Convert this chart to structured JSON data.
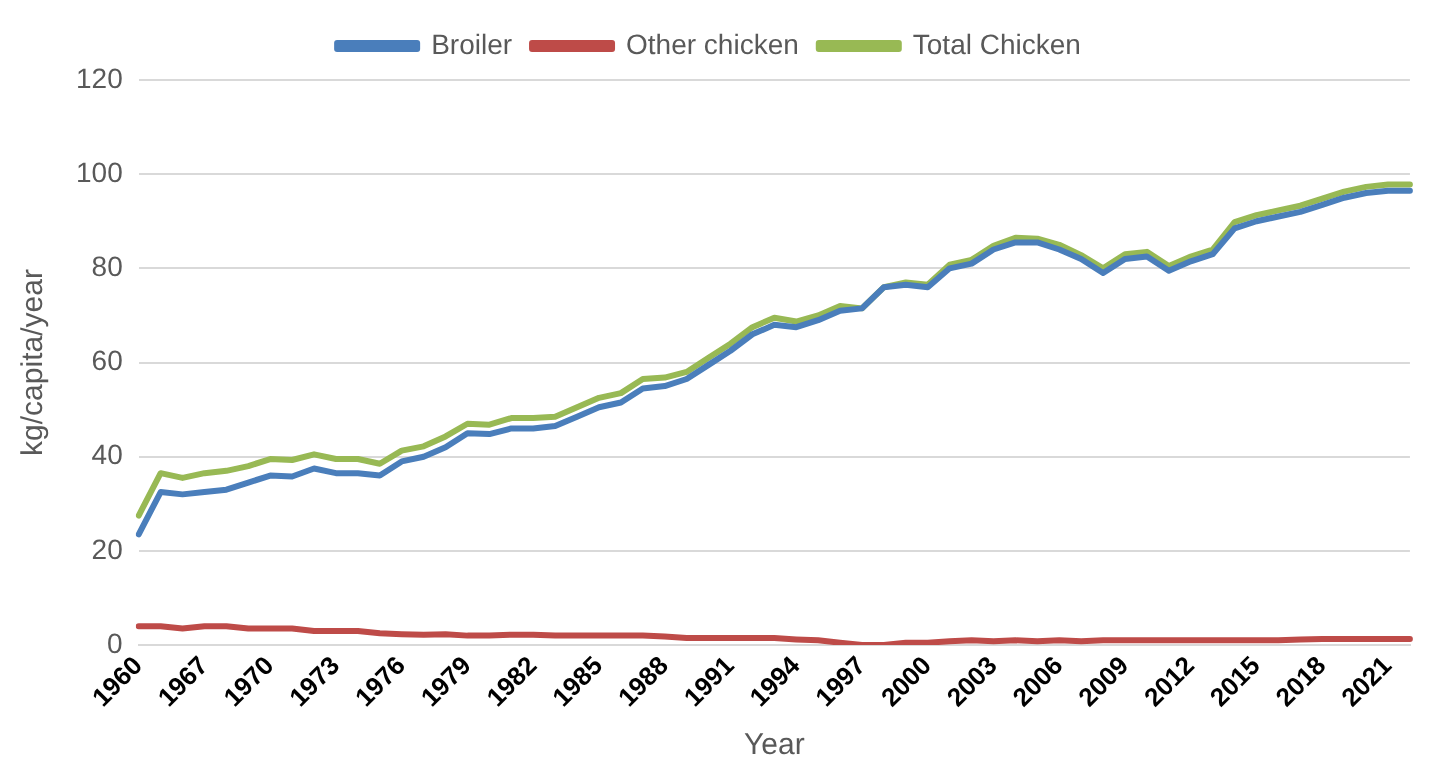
{
  "chart_data": {
    "type": "line",
    "xlabel": "Year",
    "ylabel": "kg/capita/year",
    "categories": [
      "1960",
      null,
      null,
      "1967",
      null,
      null,
      "1970",
      null,
      null,
      "1973",
      null,
      null,
      "1976",
      null,
      null,
      "1979",
      null,
      null,
      "1982",
      null,
      null,
      "1985",
      null,
      null,
      "1988",
      null,
      null,
      "1991",
      null,
      null,
      "1994",
      null,
      null,
      "1997",
      null,
      null,
      "2000",
      null,
      null,
      "2003",
      null,
      null,
      "2006",
      null,
      null,
      "2009",
      null,
      null,
      "2012",
      null,
      null,
      "2015",
      null,
      null,
      "2018",
      null,
      null,
      "2021",
      null
    ],
    "series": [
      {
        "name": "Broiler",
        "color": "#4a7ebb",
        "values": [
          23.5,
          32.5,
          32,
          32.5,
          33,
          34.5,
          36,
          35.8,
          37.5,
          36.5,
          36.5,
          36,
          39,
          40,
          42,
          45,
          44.8,
          46,
          46,
          46.5,
          48.5,
          50.5,
          51.5,
          54.5,
          55,
          56.5,
          59.5,
          62.5,
          66,
          68,
          67.5,
          69,
          71,
          71.5,
          76,
          76.5,
          76,
          80,
          81,
          84,
          85.5,
          85.5,
          84,
          82,
          79,
          82,
          82.5,
          79.5,
          81.5,
          83,
          88.5,
          90,
          91,
          92,
          93.5,
          95,
          96,
          96.5,
          96.5
        ]
      },
      {
        "name": "Other chicken",
        "color": "#be4b48",
        "values": [
          4,
          4,
          3.5,
          4,
          4,
          3.5,
          3.5,
          3.5,
          3,
          3,
          3,
          2.5,
          2.3,
          2.2,
          2.3,
          2,
          2,
          2.2,
          2.2,
          2,
          2,
          2,
          2,
          2,
          1.8,
          1.5,
          1.5,
          1.5,
          1.5,
          1.5,
          1.2,
          1,
          0.5,
          0,
          0,
          0.5,
          0.5,
          0.8,
          1,
          0.8,
          1,
          0.8,
          1,
          0.8,
          1,
          1,
          1,
          1,
          1,
          1,
          1,
          1,
          1,
          1.2,
          1.3,
          1.3,
          1.3,
          1.3,
          1.3
        ]
      },
      {
        "name": "Total Chicken",
        "color": "#98b954",
        "values": [
          27.5,
          36.5,
          35.5,
          36.5,
          37,
          38,
          39.5,
          39.3,
          40.5,
          39.5,
          39.5,
          38.5,
          41.3,
          42.2,
          44.3,
          47,
          46.8,
          48.2,
          48.2,
          48.5,
          50.5,
          52.5,
          53.5,
          56.5,
          56.8,
          58,
          61,
          64,
          67.5,
          69.5,
          68.7,
          70,
          72,
          71.5,
          76,
          77,
          76.5,
          80.8,
          81.8,
          84.8,
          86.5,
          86.3,
          85,
          82.8,
          80,
          83,
          83.5,
          80.5,
          82.5,
          84,
          89.8,
          91.3,
          92.3,
          93.3,
          94.8,
          96.3,
          97.3,
          97.8,
          97.8
        ]
      }
    ],
    "ylim": [
      0,
      120
    ],
    "yticks": [
      0,
      20,
      40,
      60,
      80,
      100,
      120
    ],
    "grid": "y",
    "legend": "top",
    "marker": "none",
    "line_style": "solid"
  }
}
